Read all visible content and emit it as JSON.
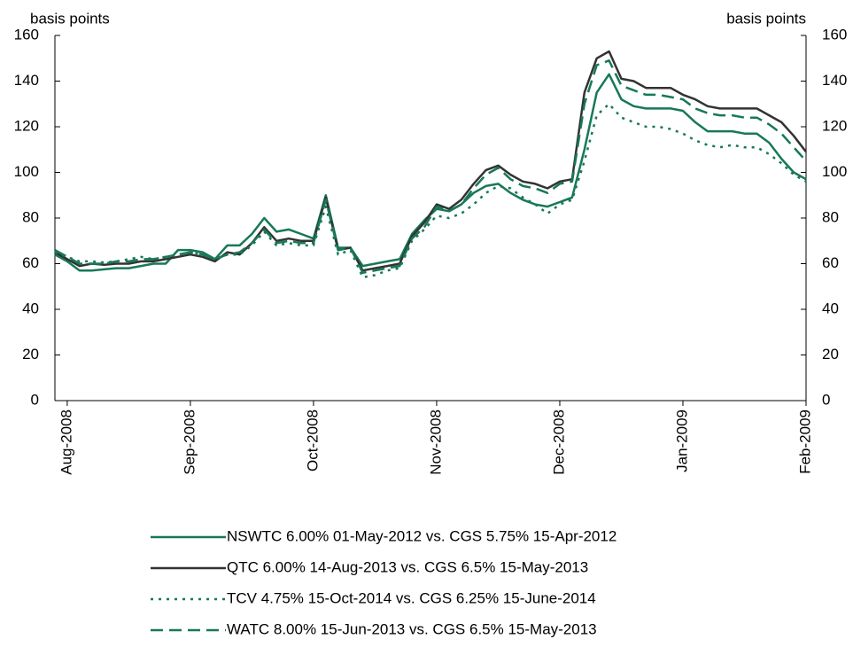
{
  "chart_data": {
    "type": "line",
    "ylabel": "basis points",
    "y2label": "basis points",
    "categories": [
      null,
      "Aug-2008",
      null,
      null,
      null,
      null,
      null,
      null,
      null,
      null,
      null,
      "Sep-2008",
      null,
      null,
      null,
      null,
      null,
      null,
      null,
      null,
      null,
      "Oct-2008",
      null,
      null,
      null,
      null,
      null,
      null,
      null,
      null,
      null,
      "Nov-2008",
      null,
      null,
      null,
      null,
      null,
      null,
      null,
      null,
      null,
      "Dec-2008",
      null,
      null,
      null,
      null,
      null,
      null,
      null,
      null,
      null,
      "Jan-2009",
      null,
      null,
      null,
      null,
      null,
      null,
      null,
      null,
      null,
      "Feb-2009"
    ],
    "ylim": [
      0,
      160
    ],
    "yticks": [
      0,
      20,
      40,
      60,
      80,
      100,
      120,
      140,
      160
    ],
    "y2lim": [
      0,
      160
    ],
    "y2ticks": [
      0,
      20,
      40,
      60,
      80,
      100,
      120,
      140,
      160
    ],
    "series": [
      {
        "name": "NSWTC 6.00% 01-May-2012 vs. CGS 5.75% 15-Apr-2012",
        "color": "#17785a",
        "line_style": "solid",
        "values": [
          64,
          61,
          57,
          57,
          57.5,
          58,
          58,
          59,
          60,
          60,
          66,
          66,
          65,
          62,
          68,
          68,
          73,
          80,
          74,
          75,
          73,
          71,
          90,
          67,
          67,
          59,
          60,
          61,
          62,
          73,
          79,
          84,
          83,
          86,
          91,
          94,
          95,
          91,
          88,
          86,
          85,
          87,
          89,
          110,
          135,
          143,
          132,
          129,
          128,
          128,
          128,
          127,
          122,
          118,
          118,
          118,
          117,
          117,
          113,
          106,
          100,
          97
        ]
      },
      {
        "name": "QTC 6.00% 14-Aug-2013 vs. CGS 6.5% 15-May-2013",
        "color": "#333333",
        "line_style": "solid",
        "values": [
          65,
          62,
          59,
          60,
          59.5,
          60,
          60,
          61,
          61,
          62,
          63,
          64,
          63,
          61,
          65,
          64,
          69,
          76,
          70,
          71,
          70,
          70,
          89,
          66,
          67,
          57,
          58,
          59,
          60,
          72,
          78,
          86,
          84,
          88,
          95,
          101,
          103,
          99,
          96,
          95,
          93,
          96,
          97,
          135,
          150,
          153,
          141,
          140,
          137,
          137,
          137,
          134,
          132,
          129,
          128,
          128,
          128,
          128,
          125,
          122,
          116,
          109
        ]
      },
      {
        "name": "TCV 4.75% 15-Oct-2014 vs. CGS 6.25% 15-June-2014",
        "color": "#17785a",
        "line_style": "dotted",
        "values": [
          65,
          63,
          61,
          61,
          60.5,
          61,
          62,
          63,
          62,
          63,
          64,
          65,
          64,
          62,
          64,
          64,
          68,
          74,
          68,
          69,
          68,
          68,
          85,
          64,
          66,
          54,
          55,
          57,
          58,
          70,
          75,
          81,
          80,
          82,
          86,
          91,
          94,
          93,
          89,
          86,
          82,
          86,
          88,
          105,
          125,
          130,
          124,
          122,
          120,
          120,
          119,
          117,
          114,
          112,
          111,
          112,
          111,
          111,
          108,
          104,
          99,
          96
        ]
      },
      {
        "name": "WATC 8.00% 15-Jun-2013 vs. CGS 6.5% 15-May-2013",
        "color": "#17785a",
        "line_style": "dashed",
        "values": [
          66,
          63,
          60,
          60,
          60,
          61,
          61,
          62,
          62,
          63,
          64,
          65,
          64,
          62,
          64,
          65,
          69,
          75,
          69,
          70,
          69,
          69,
          88,
          66,
          67,
          56,
          57,
          58,
          59,
          71,
          76,
          85,
          83,
          86,
          93,
          99,
          102,
          97,
          94,
          93,
          91,
          95,
          96,
          130,
          147,
          149,
          138,
          136,
          134,
          134,
          133,
          132,
          128,
          126,
          125,
          125,
          124,
          124,
          121,
          117,
          111,
          105
        ]
      }
    ]
  }
}
